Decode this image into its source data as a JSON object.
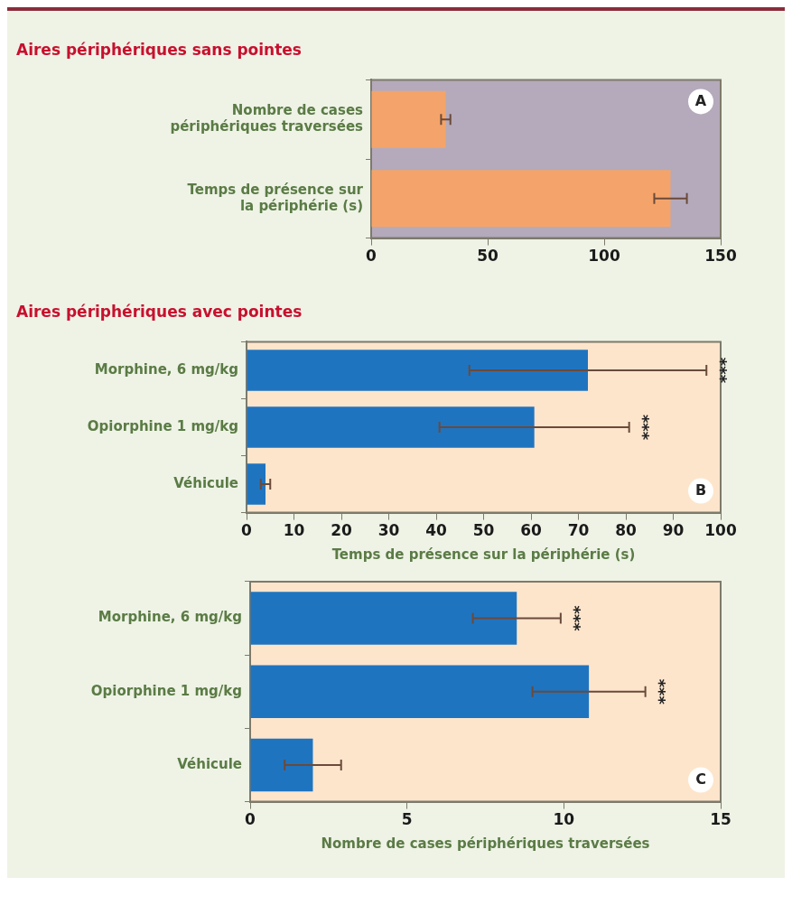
{
  "chart_data": [
    {
      "type": "bar",
      "orientation": "horizontal",
      "title": "Aires périphériques sans pointes",
      "categories": [
        "Nombre de cases périphériques traversées",
        "Temps de présence sur la périphérie (s)"
      ],
      "values": [
        32,
        128.5
      ],
      "errors": [
        2,
        7
      ],
      "color": "#f4a46a",
      "xlim": [
        0,
        150
      ],
      "xticks": [
        0,
        50,
        100,
        150
      ],
      "grid": false,
      "legend": false,
      "annotations": [
        "A"
      ]
    },
    {
      "type": "bar",
      "orientation": "horizontal",
      "title": "Aires périphériques avec pointes",
      "xlabel": "Temps de présence sur la périphérie (s)",
      "categories": [
        "Morphine, 6 mg/kg",
        "Opiorphine 1 mg/kg",
        "Véhicule"
      ],
      "values": [
        72,
        60.7,
        4
      ],
      "errors": [
        25,
        20,
        1
      ],
      "color": "#1f74c0",
      "xlim": [
        0,
        100
      ],
      "xticks": [
        0,
        10,
        20,
        30,
        40,
        50,
        60,
        70,
        80,
        90,
        100
      ],
      "grid": false,
      "legend": false,
      "annotations": [
        "B",
        "***",
        "***"
      ]
    },
    {
      "type": "bar",
      "orientation": "horizontal",
      "xlabel": "Nombre de cases périphériques traversées",
      "categories": [
        "Morphine, 6 mg/kg",
        "Opiorphine 1 mg/kg",
        "Véhicule"
      ],
      "values": [
        8.5,
        10.8,
        2
      ],
      "errors": [
        1.4,
        1.8,
        0.9
      ],
      "color": "#1f74c0",
      "xlim": [
        0,
        15
      ],
      "xticks": [
        0,
        5,
        10,
        15
      ],
      "grid": false,
      "legend": false,
      "annotations": [
        "C",
        "***",
        "***"
      ]
    }
  ]
}
